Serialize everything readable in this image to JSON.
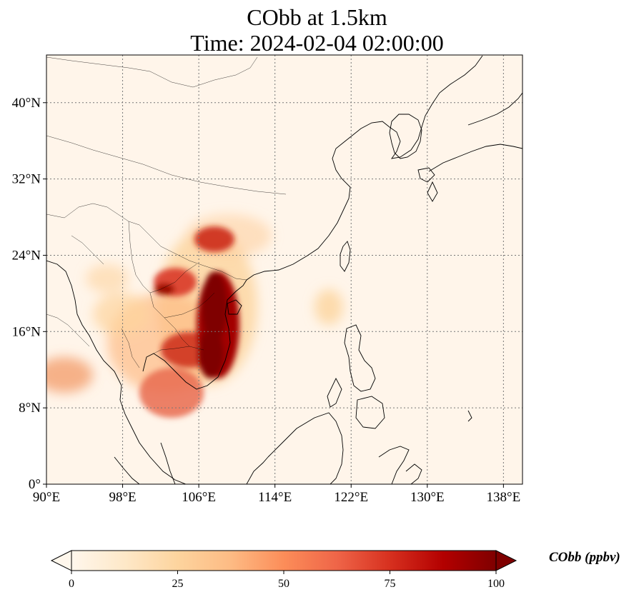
{
  "title": {
    "line1": "CObb at 1.5km",
    "line2": "Time: 2024-02-04 02:00:00"
  },
  "map": {
    "lon_range": [
      90,
      140
    ],
    "lat_range": [
      0,
      45
    ],
    "lon_ticks": [
      {
        "value": 90,
        "label": "90°E"
      },
      {
        "value": 98,
        "label": "98°E"
      },
      {
        "value": 106,
        "label": "106°E"
      },
      {
        "value": 114,
        "label": "114°E"
      },
      {
        "value": 122,
        "label": "122°E"
      },
      {
        "value": 130,
        "label": "130°E"
      },
      {
        "value": 138,
        "label": "138°E"
      }
    ],
    "lat_ticks": [
      {
        "value": 0,
        "label": "0°"
      },
      {
        "value": 8,
        "label": "8°N"
      },
      {
        "value": 16,
        "label": "16°N"
      },
      {
        "value": 24,
        "label": "24°N"
      },
      {
        "value": 32,
        "label": "32°N"
      },
      {
        "value": 40,
        "label": "40°N"
      }
    ],
    "gridlines": true,
    "coastlines": true,
    "plumes": [
      {
        "lon": 108.5,
        "lat": 17.5,
        "value": 100
      },
      {
        "lon": 107.5,
        "lat": 14.0,
        "value": 100
      },
      {
        "lon": 105.5,
        "lat": 13.5,
        "value": 90
      },
      {
        "lon": 103.0,
        "lat": 21.5,
        "value": 80
      },
      {
        "lon": 107.5,
        "lat": 25.5,
        "value": 75
      },
      {
        "lon": 101.5,
        "lat": 9.5,
        "value": 60
      },
      {
        "lon": 91.0,
        "lat": 11.0,
        "value": 45
      },
      {
        "lon": 100.5,
        "lat": 17.0,
        "value": 40
      },
      {
        "lon": 119.5,
        "lat": 18.0,
        "value": 25
      },
      {
        "lon": 97.0,
        "lat": 20.5,
        "value": 25
      }
    ]
  },
  "colorbar": {
    "label": "CObb (ppbv)",
    "min": 0,
    "max": 100,
    "extend": "both",
    "cmap": "OrRd",
    "ticks": [
      {
        "value": 0,
        "label": "0"
      },
      {
        "value": 25,
        "label": "25"
      },
      {
        "value": 50,
        "label": "50"
      },
      {
        "value": 75,
        "label": "75"
      },
      {
        "value": 100,
        "label": "100"
      }
    ]
  },
  "colors": {
    "low": "#fff7ec",
    "mid1": "#fdd49e",
    "mid2": "#fc8d59",
    "mid3": "#d7301f",
    "high": "#7f0000"
  }
}
